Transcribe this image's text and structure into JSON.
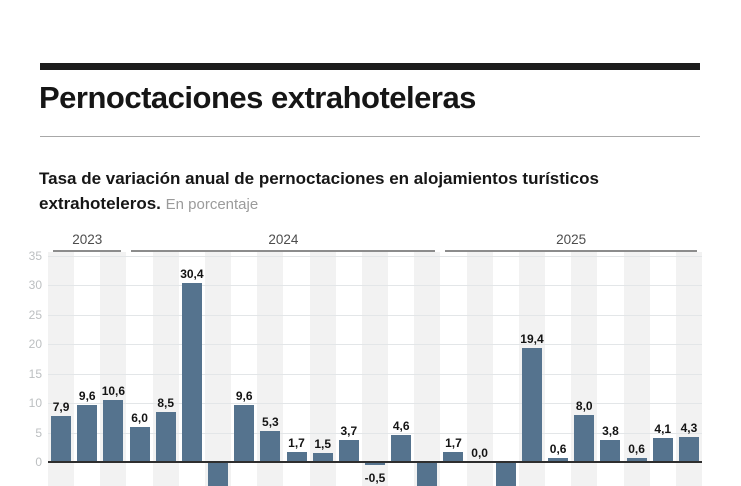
{
  "header": {
    "title": "Pernoctaciones extrahoteleras",
    "subtitle": {
      "line1": "Tasa de variación anual de pernoctaciones en alojamientos turísticos",
      "line2_bold": "extrahoteleros.",
      "note": "En porcentaje"
    }
  },
  "chart_data": {
    "type": "bar",
    "title": "Pernoctaciones extrahoteleras",
    "subtitle": "Tasa de variación anual de pernoctaciones en alojamientos turísticos extrahoteleros. En porcentaje",
    "ylabel": "",
    "xlabel": "",
    "unit": "percent",
    "grid": true,
    "legend": false,
    "y_ticks": [
      35,
      30,
      25,
      20,
      15,
      10,
      5,
      0
    ],
    "ylim_visible": [
      -4,
      35
    ],
    "groups": [
      {
        "label": "2023",
        "start_index": 0,
        "end_index": 2
      },
      {
        "label": "2024",
        "start_index": 3,
        "end_index": 14
      },
      {
        "label": "2025",
        "start_index": 15,
        "end_index": 24
      }
    ],
    "bars": [
      {
        "label": "7,9",
        "value": 7.9,
        "clipped_below": false
      },
      {
        "label": "9,6",
        "value": 9.6,
        "clipped_below": false
      },
      {
        "label": "10,6",
        "value": 10.6,
        "clipped_below": false
      },
      {
        "label": "6,0",
        "value": 6.0,
        "clipped_below": false
      },
      {
        "label": "8,5",
        "value": 8.5,
        "clipped_below": false
      },
      {
        "label": "30,4",
        "value": 30.4,
        "clipped_below": false
      },
      {
        "label": null,
        "value": null,
        "clipped_below": true
      },
      {
        "label": "9,6",
        "value": 9.6,
        "clipped_below": false
      },
      {
        "label": "5,3",
        "value": 5.3,
        "clipped_below": false
      },
      {
        "label": "1,7",
        "value": 1.7,
        "clipped_below": false
      },
      {
        "label": "1,5",
        "value": 1.5,
        "clipped_below": false
      },
      {
        "label": "3,7",
        "value": 3.7,
        "clipped_below": false
      },
      {
        "label": "-0,5",
        "value": -0.5,
        "clipped_below": false
      },
      {
        "label": "4,6",
        "value": 4.6,
        "clipped_below": false
      },
      {
        "label": null,
        "value": null,
        "clipped_below": true
      },
      {
        "label": "1,7",
        "value": 1.7,
        "clipped_below": false
      },
      {
        "label": "0,0",
        "value": 0.0,
        "clipped_below": false
      },
      {
        "label": null,
        "value": null,
        "clipped_below": true
      },
      {
        "label": "19,4",
        "value": 19.4,
        "clipped_below": false
      },
      {
        "label": "0,6",
        "value": 0.6,
        "clipped_below": false
      },
      {
        "label": "8,0",
        "value": 8.0,
        "clipped_below": false
      },
      {
        "label": "3,8",
        "value": 3.8,
        "clipped_below": false
      },
      {
        "label": "0,6",
        "value": 0.6,
        "clipped_below": false
      },
      {
        "label": "4,1",
        "value": 4.1,
        "clipped_below": false
      },
      {
        "label": "4,3",
        "value": 4.3,
        "clipped_below": false
      }
    ],
    "colors": {
      "bar": "#55738e",
      "stripe": "#f2f2f2",
      "gridline": "#e3e6e8",
      "zero_line": "#2e2e2e",
      "y_tick_label": "#bcbfc1",
      "year_label": "#4d4d4d",
      "year_line": "#8c8c8c",
      "value_label": "#141414",
      "title": "#161616",
      "note": "#9b9b9b",
      "top_rule": "#1d1d1d"
    }
  }
}
